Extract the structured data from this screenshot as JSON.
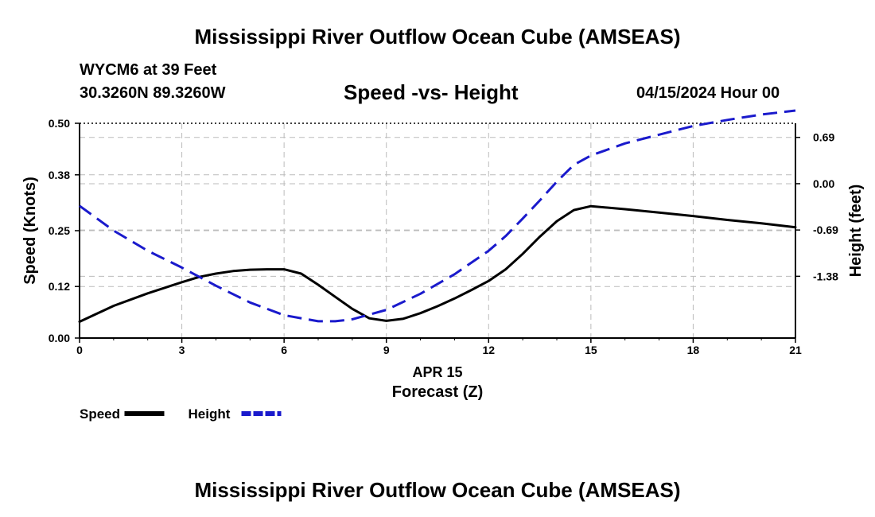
{
  "header": {
    "title": "Mississippi River Outflow Ocean Cube (AMSEAS)",
    "station": "WYCM6 at 39 Feet",
    "coords": "30.3260N  89.3260W",
    "subtitle": "Speed -vs- Height",
    "datetime": "04/15/2024 Hour 00"
  },
  "footer": {
    "title": "Mississippi River Outflow Ocean Cube (AMSEAS)"
  },
  "chart_data": {
    "type": "line",
    "title": "Speed -vs- Height",
    "xlabel": "Forecast (Z)",
    "xlabel_date": "APR 15",
    "ylabel": "Speed (Knots)",
    "y2label": "Height (feet)",
    "x_ticks": [
      "0",
      "3",
      "6",
      "9",
      "12",
      "15",
      "18",
      "21"
    ],
    "xlim": [
      0,
      21
    ],
    "y_ticks": [
      "0.00",
      "0.12",
      "0.25",
      "0.38",
      "0.50"
    ],
    "ylim": [
      0,
      0.5
    ],
    "y2_ticks": [
      "-1.38",
      "-0.69",
      "0.00",
      "0.69"
    ],
    "y2lim": [
      -2.3,
      0.9
    ],
    "grid": true,
    "series": [
      {
        "name": "Speed",
        "axis": "left",
        "color": "#000000",
        "style": "solid",
        "x": [
          0,
          1,
          2,
          3,
          3.5,
          4,
          4.5,
          5,
          5.5,
          6,
          6.5,
          7,
          7.5,
          8,
          8.5,
          9,
          9.5,
          10,
          10.5,
          11,
          11.5,
          12,
          12.5,
          13,
          13.5,
          14,
          14.5,
          15,
          16,
          17,
          18,
          19,
          20,
          21
        ],
        "values": [
          0.038,
          0.075,
          0.104,
          0.13,
          0.142,
          0.15,
          0.156,
          0.159,
          0.16,
          0.16,
          0.15,
          0.124,
          0.096,
          0.068,
          0.046,
          0.04,
          0.045,
          0.058,
          0.074,
          0.092,
          0.112,
          0.133,
          0.16,
          0.196,
          0.236,
          0.272,
          0.298,
          0.307,
          0.3,
          0.292,
          0.284,
          0.275,
          0.267,
          0.258
        ]
      },
      {
        "name": "Height",
        "axis": "right",
        "color": "#1a1acc",
        "style": "dashed",
        "x": [
          0,
          1,
          2,
          3,
          4,
          5,
          6,
          7,
          7.5,
          8,
          9,
          10,
          11,
          12,
          12.5,
          13,
          13.5,
          14,
          14.5,
          15,
          16,
          17,
          18,
          19,
          20,
          21
        ],
        "values": [
          -0.33,
          -0.7,
          -1.0,
          -1.25,
          -1.52,
          -1.77,
          -1.96,
          -2.05,
          -2.05,
          -2.02,
          -1.88,
          -1.64,
          -1.35,
          -1.0,
          -0.78,
          -0.52,
          -0.25,
          0.03,
          0.28,
          0.42,
          0.6,
          0.73,
          0.86,
          0.95,
          1.03,
          1.09
        ]
      }
    ],
    "legend": [
      {
        "label": "Speed",
        "color": "#000000",
        "style": "solid"
      },
      {
        "label": "Height",
        "color": "#1a1acc",
        "style": "dashed"
      }
    ],
    "legend_position": "bottom-left"
  }
}
